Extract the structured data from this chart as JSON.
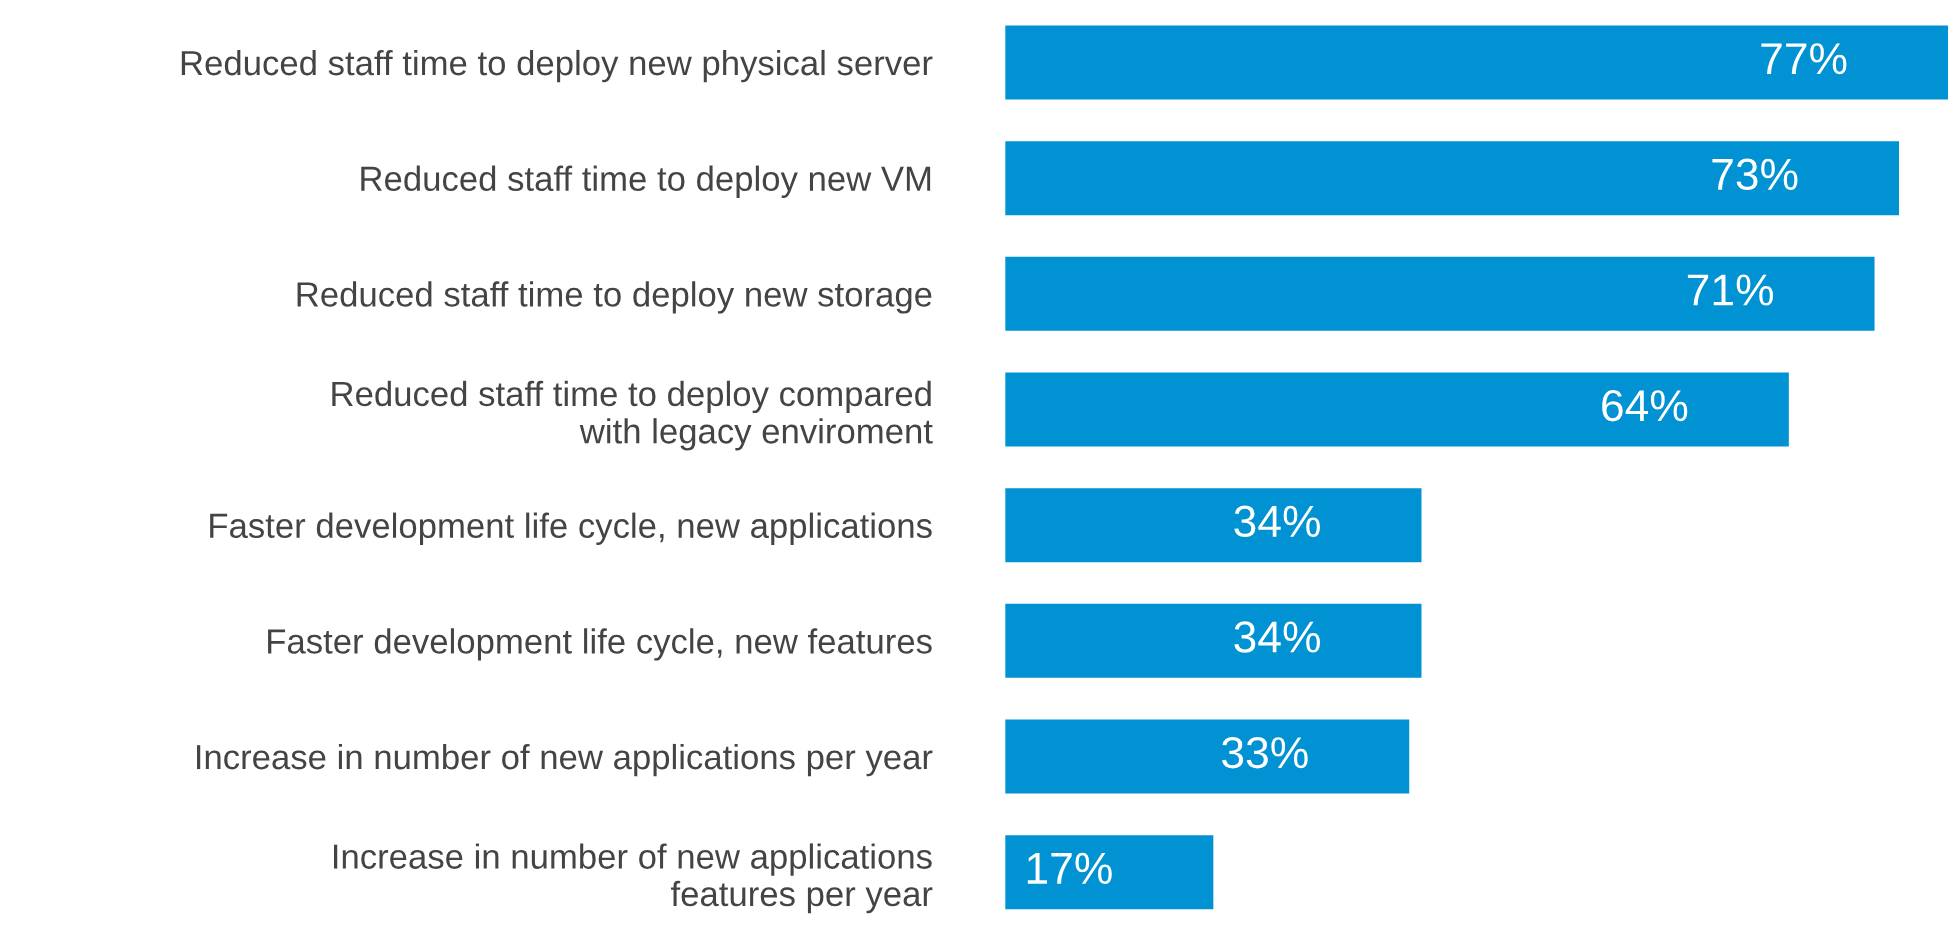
{
  "chart_data": {
    "type": "bar",
    "orientation": "horizontal",
    "categories": [
      "Reduced staff time to deploy new physical server",
      "Reduced staff time to deploy new VM",
      "Reduced staff time to deploy new storage",
      "Reduced staff time to deploy compared\nwith legacy enviroment",
      "Faster development life cycle, new applications",
      "Faster development life cycle, new features",
      "Increase in number of new applications per year",
      "Increase in number of new applications\nfeatures per year"
    ],
    "values": [
      77,
      73,
      71,
      64,
      34,
      34,
      33,
      17
    ],
    "value_labels": [
      "77%",
      "73%",
      "71%",
      "64%",
      "34%",
      "34%",
      "33%",
      "17%"
    ],
    "color": "#0092d2",
    "xlim": [
      0,
      77
    ],
    "tick_labels": "y",
    "grid": false,
    "legend": false
  }
}
